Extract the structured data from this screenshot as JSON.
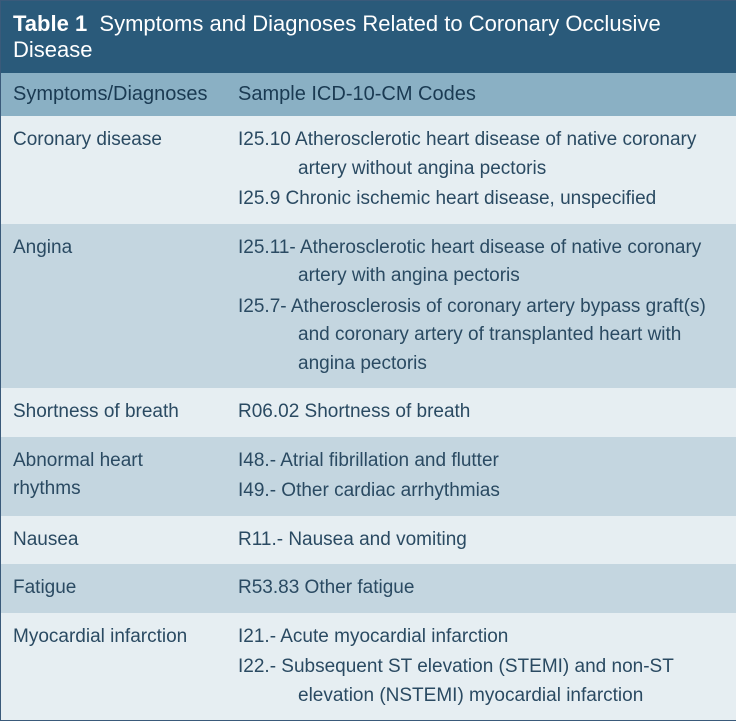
{
  "table": {
    "title_label": "Table 1",
    "title_text": "Symptoms and Diagnoses Related to Coronary Occlusive Disease",
    "columns": [
      "Symptoms/Diagnoses",
      "Sample ICD-10-CM Codes"
    ],
    "rows": [
      {
        "shade": "light",
        "symptom": "Coronary disease",
        "codes": [
          "I25.10 Atherosclerotic heart disease of native coronary artery without angina pectoris",
          "I25.9 Chronic ischemic heart disease, unspecified"
        ]
      },
      {
        "shade": "dark",
        "symptom": "Angina",
        "codes": [
          "I25.11- Atherosclerotic heart disease of native coronary artery with angina pectoris",
          "I25.7- Atherosclerosis of coronary artery bypass graft(s) and coronary artery of transplanted heart with angina pectoris"
        ]
      },
      {
        "shade": "light",
        "symptom": "Shortness of breath",
        "codes": [
          "R06.02 Shortness of breath"
        ]
      },
      {
        "shade": "dark",
        "symptom": "Abnormal heart rhythms",
        "codes": [
          "I48.- Atrial fibrillation and flutter",
          "I49.- Other cardiac arrhythmias"
        ]
      },
      {
        "shade": "light",
        "symptom": "Nausea",
        "codes": [
          "R11.- Nausea and vomiting"
        ]
      },
      {
        "shade": "dark",
        "symptom": "Fatigue",
        "codes": [
          "R53.83 Other fatigue"
        ]
      },
      {
        "shade": "light",
        "symptom": "Myocardial infarction",
        "codes": [
          "I21.- Acute myocardial infarction",
          "I22.- Subsequent ST elevation (STEMI) and non-ST elevation (NSTEMI) myocardial infarction"
        ]
      }
    ],
    "colors": {
      "title_bg": "#2a5a7a",
      "title_fg": "#ffffff",
      "header_bg": "#8ab0c4",
      "header_fg": "#1a3a52",
      "row_light": "#e6eef2",
      "row_dark": "#c4d6e0",
      "text": "#2a4a62",
      "border": "#3a5a7a"
    },
    "font_sizes": {
      "title": 22,
      "header": 20,
      "body": 19
    }
  }
}
